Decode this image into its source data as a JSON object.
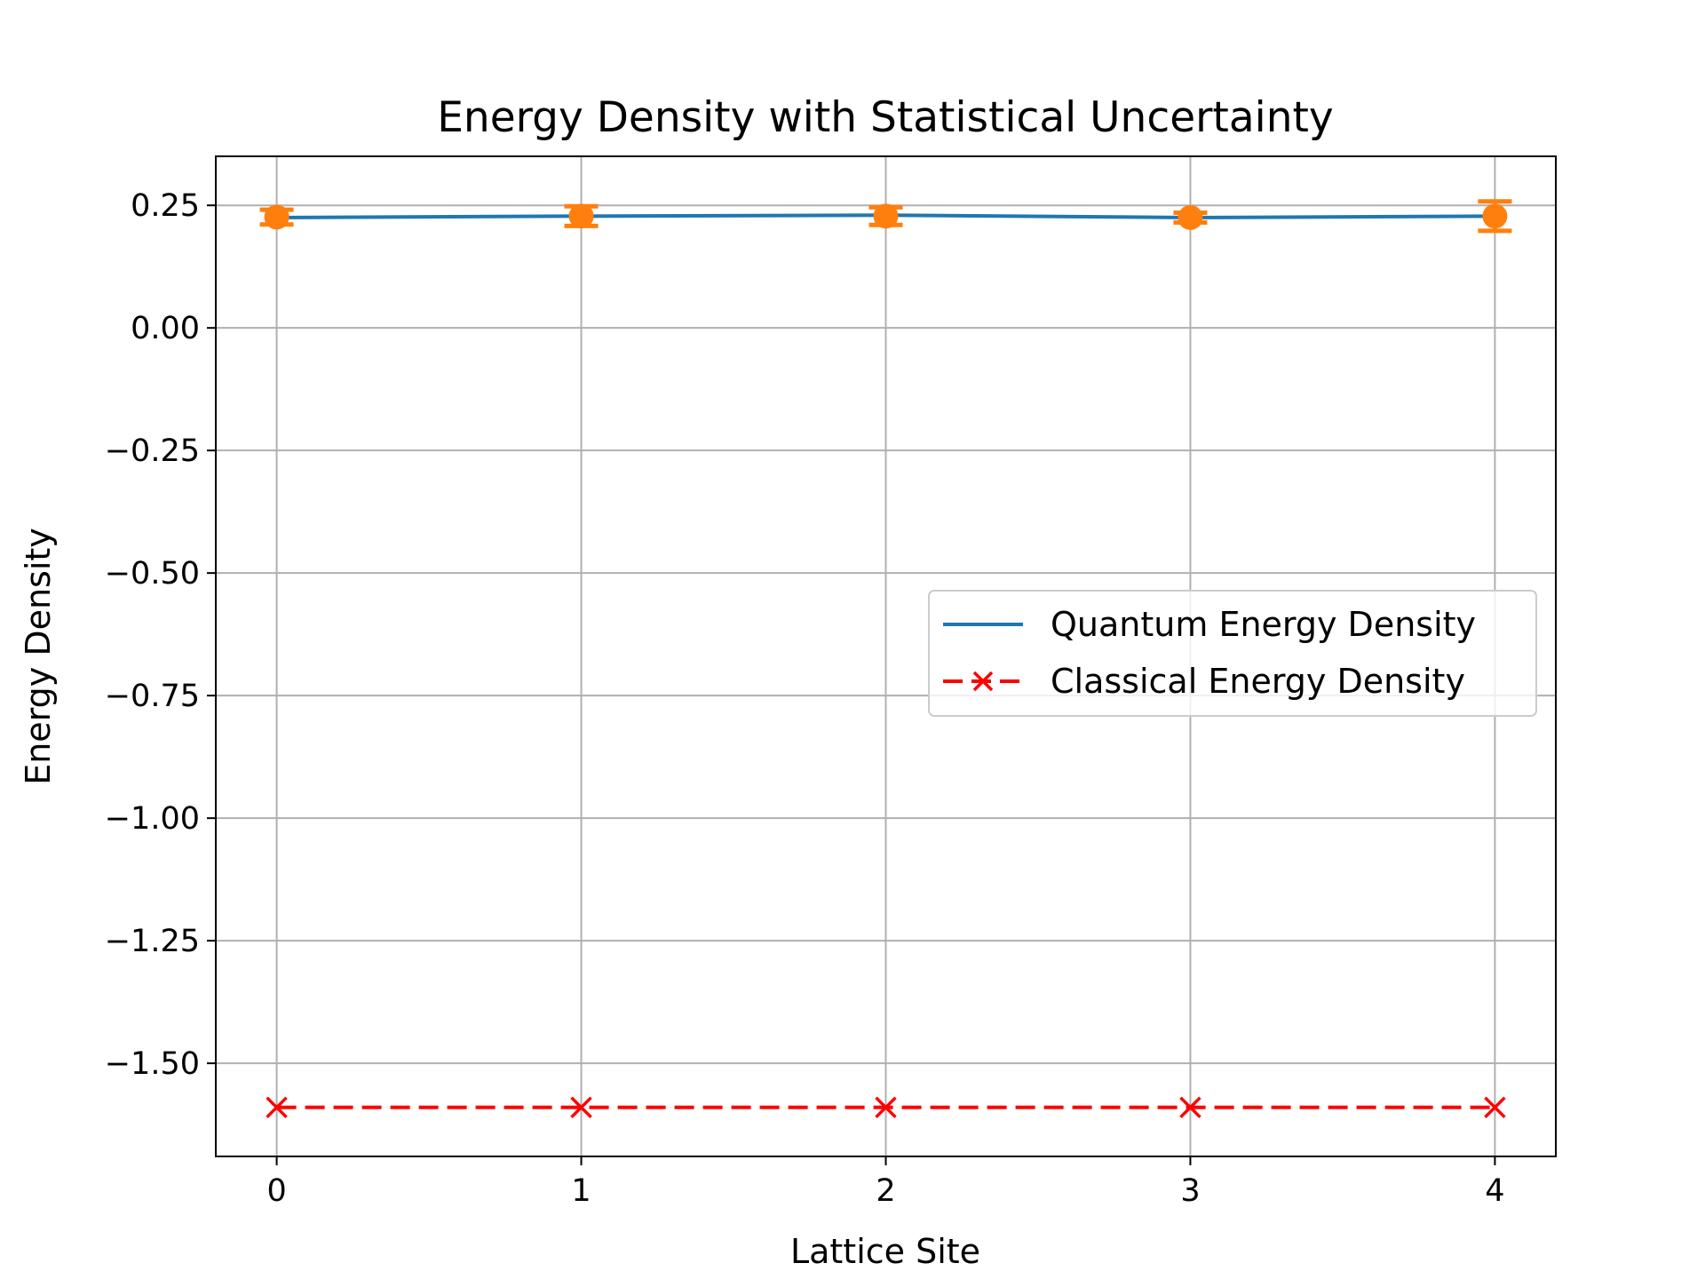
{
  "chart_data": {
    "type": "line",
    "title": "Energy Density with Statistical Uncertainty",
    "xlabel": "Lattice Site",
    "ylabel": "Energy Density",
    "x": [
      0,
      1,
      2,
      3,
      4
    ],
    "xlim": [
      -0.2,
      4.2
    ],
    "ylim": [
      -1.69,
      0.35
    ],
    "x_ticks": [
      {
        "value": 0,
        "label": "0"
      },
      {
        "value": 1,
        "label": "1"
      },
      {
        "value": 2,
        "label": "2"
      },
      {
        "value": 3,
        "label": "3"
      },
      {
        "value": 4,
        "label": "4"
      }
    ],
    "y_ticks": [
      {
        "value": 0.25,
        "label": "0.25"
      },
      {
        "value": 0.0,
        "label": "0.00"
      },
      {
        "value": -0.25,
        "label": "−0.25"
      },
      {
        "value": -0.5,
        "label": "−0.50"
      },
      {
        "value": -0.75,
        "label": "−0.75"
      },
      {
        "value": -1.0,
        "label": "−1.00"
      },
      {
        "value": -1.25,
        "label": "−1.25"
      },
      {
        "value": -1.5,
        "label": "−1.50"
      }
    ],
    "grid": true,
    "legend_position": "center-right",
    "series": [
      {
        "name": "Quantum Energy Density",
        "style": "solid",
        "color": "#1f77b4",
        "values": [
          0.225,
          0.228,
          0.23,
          0.225,
          0.228
        ]
      },
      {
        "name": "Classical Energy Density",
        "style": "dashed-x",
        "color": "#ff0000",
        "values": [
          -1.59,
          -1.59,
          -1.59,
          -1.59,
          -1.59
        ]
      }
    ],
    "error_bars": {
      "color": "#ff7f0e",
      "values": [
        0.226,
        0.228,
        0.228,
        0.225,
        0.228
      ],
      "errors": [
        0.015,
        0.02,
        0.018,
        0.01,
        0.03
      ]
    }
  }
}
